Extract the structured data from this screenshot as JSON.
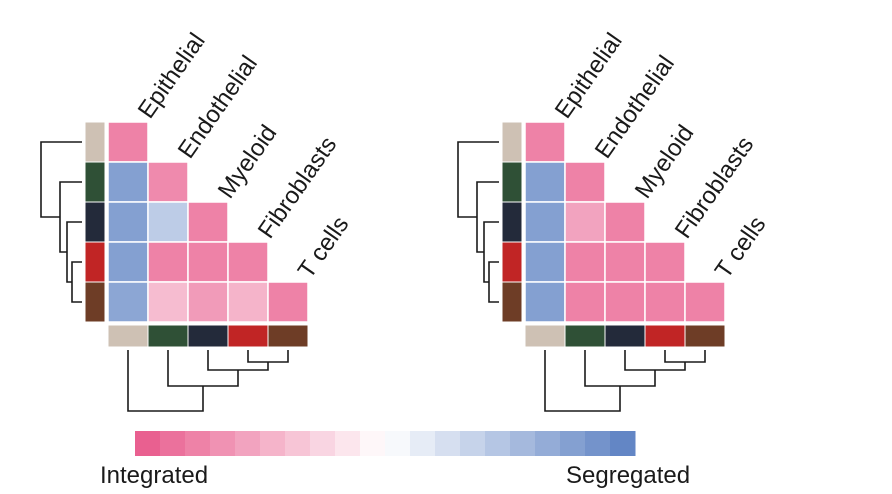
{
  "chart_data": [
    {
      "type": "heatmap",
      "title": "",
      "categories": [
        "Epithelial",
        "Endothelial",
        "Myeloid",
        "Fibroblasts",
        "T cells"
      ],
      "category_colors": [
        "#cec1b4",
        "#2f5036",
        "#232a3a",
        "#c12525",
        "#6e3d26"
      ],
      "matrix_lower_triangle": [
        [
          -0.75
        ],
        [
          0.75,
          -0.7
        ],
        [
          0.75,
          0.4,
          -0.75
        ],
        [
          0.75,
          -0.75,
          -0.75,
          -0.75
        ],
        [
          0.7,
          -0.4,
          -0.6,
          -0.45,
          -0.75
        ]
      ],
      "dendrogram": [
        "Epithelial",
        [
          "Endothelial",
          [
            "Myeloid",
            [
              "Fibroblasts",
              "T cells"
            ]
          ]
        ]
      ]
    },
    {
      "type": "heatmap",
      "title": "",
      "categories": [
        "Epithelial",
        "Endothelial",
        "Myeloid",
        "Fibroblasts",
        "T cells"
      ],
      "category_colors": [
        "#cec1b4",
        "#2f5036",
        "#232a3a",
        "#c12525",
        "#6e3d26"
      ],
      "matrix_lower_triangle": [
        [
          -0.75
        ],
        [
          0.75,
          -0.75
        ],
        [
          0.75,
          -0.55,
          -0.75
        ],
        [
          0.75,
          -0.75,
          -0.75,
          -0.75
        ],
        [
          0.75,
          -0.75,
          -0.75,
          -0.75,
          -0.75
        ]
      ],
      "dendrogram": [
        "Epithelial",
        [
          "Endothelial",
          [
            "Myeloid",
            [
              "Fibroblasts",
              "T cells"
            ]
          ]
        ]
      ]
    }
  ],
  "legend": {
    "colorscale": {
      "min": -1,
      "max": 1,
      "steps": 20,
      "low_color": "#e8588a",
      "mid_color": "#ffffff",
      "high_color": "#5b80c2"
    },
    "low_label": "Integrated",
    "high_label": "Segregated"
  }
}
